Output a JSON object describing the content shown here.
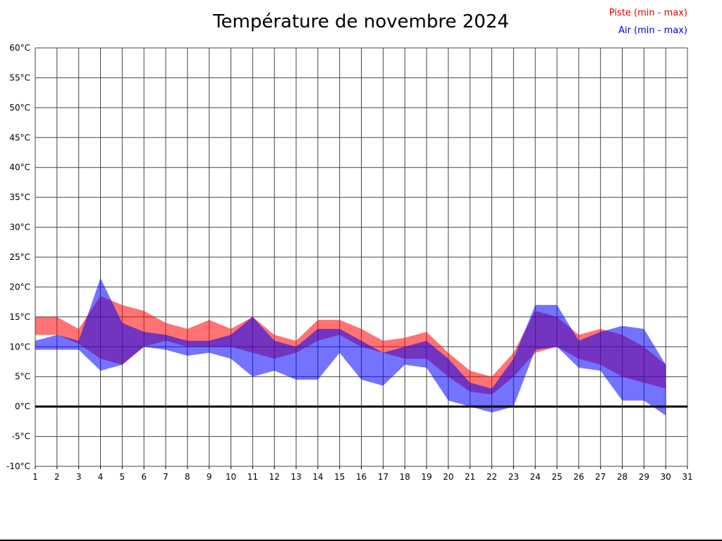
{
  "title": "Température de novembre 2024",
  "legend": [
    {
      "key": "piste",
      "label": "Piste (min - max)",
      "color": "#dd0000"
    },
    {
      "key": "air",
      "label": "Air (min - max)",
      "color": "#0000dd"
    }
  ],
  "chart_data": {
    "type": "area",
    "title": "Température de novembre 2024",
    "xlabel": "",
    "ylabel": "",
    "xlim": [
      1,
      31
    ],
    "ylim": [
      -10,
      60
    ],
    "y_step": 5,
    "grid": true,
    "grid_color": "#454545",
    "zero_line": {
      "value": 0,
      "color": "#000000",
      "width": 3
    },
    "x": [
      1,
      2,
      3,
      4,
      5,
      6,
      7,
      8,
      9,
      10,
      11,
      12,
      13,
      14,
      15,
      16,
      17,
      18,
      19,
      20,
      21,
      22,
      23,
      24,
      25,
      26,
      27,
      28,
      29,
      30
    ],
    "x_tick_labels": [
      "1",
      "2",
      "3",
      "4",
      "5",
      "6",
      "7",
      "8",
      "9",
      "10",
      "11",
      "12",
      "13",
      "14",
      "15",
      "16",
      "17",
      "18",
      "19",
      "20",
      "21",
      "22",
      "23",
      "24",
      "25",
      "26",
      "27",
      "28",
      "29",
      "30",
      "31"
    ],
    "y_tick_labels": [
      "60°C",
      "55°C",
      "50°C",
      "45°C",
      "40°C",
      "35°C",
      "30°C",
      "25°C",
      "20°C",
      "15°C",
      "10°C",
      "5°C",
      "0°C",
      "-5°C",
      "-10°C"
    ],
    "series": [
      {
        "key": "piste",
        "name": "Piste (min - max)",
        "color": "#ff0000",
        "fill_opacity": 0.55,
        "min": [
          12,
          12,
          10.5,
          8,
          7,
          10,
          11,
          10,
          10,
          10,
          9,
          8,
          9,
          11,
          12,
          10,
          9,
          8,
          8,
          5,
          2.5,
          2,
          5,
          9,
          10,
          8,
          7,
          5,
          4,
          3
        ],
        "max": [
          15,
          15,
          13,
          18.5,
          17,
          16,
          14,
          13,
          14.5,
          13,
          15,
          12,
          11,
          14.5,
          14.5,
          13,
          11,
          11.5,
          12.5,
          9,
          6,
          5,
          9,
          16,
          15,
          12,
          13,
          12,
          10,
          7
        ]
      },
      {
        "key": "air",
        "name": "Air (min - max)",
        "color": "#0000ff",
        "fill_opacity": 0.55,
        "min": [
          9.5,
          9.5,
          9.5,
          6,
          7,
          10,
          9.5,
          8.5,
          9,
          8,
          5,
          6,
          4.5,
          4.5,
          9,
          4.5,
          3.5,
          7,
          6.5,
          1,
          0,
          -1,
          0,
          9.5,
          10,
          6.5,
          6,
          1,
          1,
          -1.5
        ],
        "max": [
          11,
          12,
          11,
          21.5,
          14,
          12.5,
          12,
          11,
          11,
          12,
          15,
          11,
          10,
          13,
          13,
          11,
          9,
          10,
          11,
          8,
          4,
          3,
          8,
          17,
          17,
          11,
          12.5,
          13.5,
          13,
          7
        ]
      }
    ]
  }
}
